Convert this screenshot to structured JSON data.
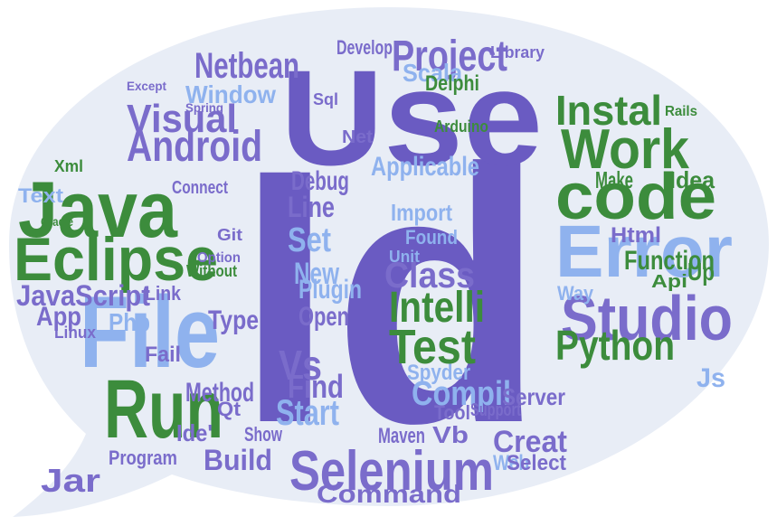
{
  "words": [
    {
      "text": "Id",
      "color": "#6a5bc2"
    },
    {
      "text": "Use",
      "color": "#6a5bc2"
    },
    {
      "text": "Java",
      "color": "#3c8c3c"
    },
    {
      "text": "Eclipse",
      "color": "#3c8c3c"
    },
    {
      "text": "File",
      "color": "#8fb2ee"
    },
    {
      "text": "Run",
      "color": "#3c8c3c"
    },
    {
      "text": "Android",
      "color": "#7a6ccb"
    },
    {
      "text": "Visual",
      "color": "#7a6ccb"
    },
    {
      "text": "Window",
      "color": "#8fb2ee"
    },
    {
      "text": "Netbean",
      "color": "#7a6ccb"
    },
    {
      "text": "Project",
      "color": "#7a6ccb"
    },
    {
      "text": "Scala",
      "color": "#8fb2ee"
    },
    {
      "text": "Instal",
      "color": "#3c8c3c"
    },
    {
      "text": "Work",
      "color": "#3c8c3c"
    },
    {
      "text": "code",
      "color": "#3c8c3c"
    },
    {
      "text": "Error",
      "color": "#8fb2ee"
    },
    {
      "text": "Studio",
      "color": "#7a6ccb"
    },
    {
      "text": "Python",
      "color": "#3c8c3c"
    },
    {
      "text": "Test",
      "color": "#3c8c3c"
    },
    {
      "text": "Intelli",
      "color": "#3c8c3c"
    },
    {
      "text": "Class",
      "color": "#7a6ccb"
    },
    {
      "text": "Selenium",
      "color": "#7a6ccb"
    },
    {
      "text": "Command",
      "color": "#7a6ccb"
    },
    {
      "text": "Compil",
      "color": "#8fb2ee"
    },
    {
      "text": "Creat",
      "color": "#7a6ccb"
    },
    {
      "text": "Vs",
      "color": "#7a6ccb"
    },
    {
      "text": "Start",
      "color": "#8fb2ee"
    },
    {
      "text": "Find",
      "color": "#7a6ccb"
    },
    {
      "text": "Method",
      "color": "#7a6ccb"
    },
    {
      "text": "Debug",
      "color": "#7a6ccb"
    },
    {
      "text": "Delphi",
      "color": "#3c8c3c"
    },
    {
      "text": "JavaScript",
      "color": "#7a6ccb"
    },
    {
      "text": "App",
      "color": "#7a6ccb"
    },
    {
      "text": "Php",
      "color": "#8fb2ee"
    },
    {
      "text": "Type",
      "color": "#7a6ccb"
    },
    {
      "text": "New",
      "color": "#8fb2ee"
    },
    {
      "text": "Set",
      "color": "#8fb2ee"
    },
    {
      "text": "Line",
      "color": "#7a6ccb"
    },
    {
      "text": "Plugin",
      "color": "#8fb2ee"
    },
    {
      "text": "Open",
      "color": "#7a6ccb"
    },
    {
      "text": "Build",
      "color": "#7a6ccb"
    },
    {
      "text": "Jar",
      "color": "#7a6ccb"
    },
    {
      "text": "Program",
      "color": "#7a6ccb"
    },
    {
      "text": "Maven",
      "color": "#7a6ccb"
    },
    {
      "text": "Vb",
      "color": "#7a6ccb"
    },
    {
      "text": "Function",
      "color": "#3c8c3c"
    },
    {
      "text": "Make",
      "color": "#3c8c3c"
    },
    {
      "text": "Idea",
      "color": "#3c8c3c"
    },
    {
      "text": "Html",
      "color": "#7a6ccb"
    },
    {
      "text": "Up",
      "color": "#3c8c3c"
    },
    {
      "text": "Js",
      "color": "#8fb2ee"
    },
    {
      "text": "Applicable",
      "color": "#8fb2ee"
    },
    {
      "text": "Import",
      "color": "#8fb2ee"
    },
    {
      "text": "Spyder",
      "color": "#8fb2ee"
    },
    {
      "text": "Web",
      "color": "#8fb2ee"
    },
    {
      "text": "Select",
      "color": "#7a6ccb"
    },
    {
      "text": "Server",
      "color": "#7a6ccb"
    },
    {
      "text": "Develop",
      "color": "#7a6ccb"
    },
    {
      "text": "Connect",
      "color": "#7a6ccb"
    },
    {
      "text": "Ide'",
      "color": "#7a6ccb"
    },
    {
      "text": "Qt",
      "color": "#7a6ccb"
    },
    {
      "text": "Linux",
      "color": "#7a6ccb"
    },
    {
      "text": "Fail",
      "color": "#7a6ccb"
    },
    {
      "text": "Link",
      "color": "#7a6ccb"
    },
    {
      "text": "Show",
      "color": "#7a6ccb"
    },
    {
      "text": "Text",
      "color": "#8fb2ee"
    },
    {
      "text": "Tool",
      "color": "#7a6ccb"
    },
    {
      "text": "Support",
      "color": "#7a6ccb"
    },
    {
      "text": "Api",
      "color": "#3c8c3c"
    },
    {
      "text": "Xml",
      "color": "#3c8c3c"
    },
    {
      "text": "Spring",
      "color": "#7a6ccb"
    },
    {
      "text": "Except",
      "color": "#7a6ccb"
    },
    {
      "text": "Gradle",
      "color": "#3c8c3c"
    },
    {
      "text": "Git",
      "color": "#7a6ccb"
    },
    {
      "text": "Sql",
      "color": "#7a6ccb"
    },
    {
      "text": "Net",
      "color": "#7a6ccb"
    },
    {
      "text": "Arduino",
      "color": "#3c8c3c"
    },
    {
      "text": "Rails",
      "color": "#3c8c3c"
    },
    {
      "text": "Option",
      "color": "#7a6ccb"
    },
    {
      "text": "Without",
      "color": "#3c8c3c"
    },
    {
      "text": "Library",
      "color": "#7a6ccb"
    },
    {
      "text": "Way",
      "color": "#8fb2ee"
    },
    {
      "text": "Found",
      "color": "#8fb2ee"
    },
    {
      "text": "Unit",
      "color": "#8fb2ee"
    }
  ]
}
